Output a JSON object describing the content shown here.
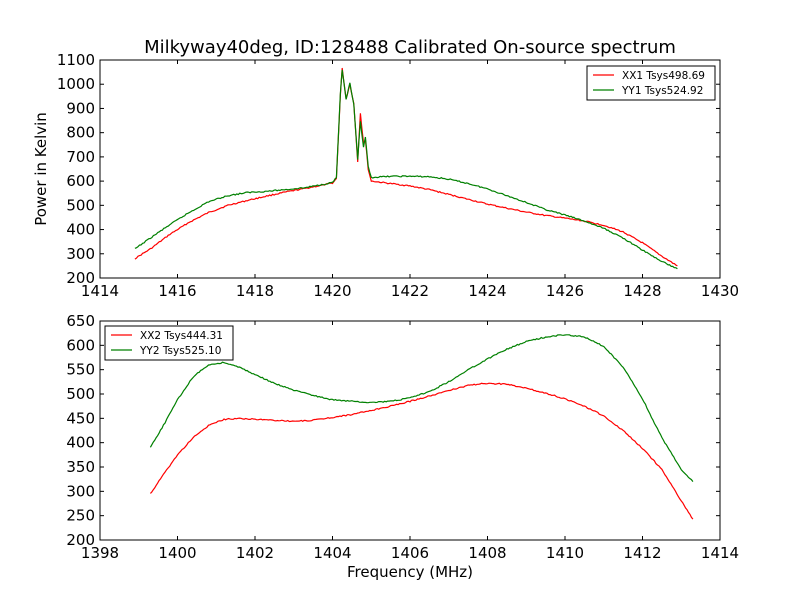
{
  "figure": {
    "title": "Milkyway40deg, ID:128488 Calibrated On-source spectrum",
    "xlabel": "Frequency (MHz)"
  },
  "chart_data": [
    {
      "type": "line",
      "ylabel": "Power in Kelvin",
      "xlabel": "",
      "xlim": [
        1414,
        1430
      ],
      "ylim": [
        200,
        1100
      ],
      "x_ticks": [
        "1414",
        "1416",
        "1418",
        "1420",
        "1422",
        "1424",
        "1426",
        "1428",
        "1430"
      ],
      "y_ticks": [
        "200",
        "300",
        "400",
        "500",
        "600",
        "700",
        "800",
        "900",
        "1000",
        "1100"
      ],
      "x_tick_values": [
        1414,
        1416,
        1418,
        1420,
        1422,
        1424,
        1426,
        1428,
        1430
      ],
      "y_tick_values": [
        200,
        300,
        400,
        500,
        600,
        700,
        800,
        900,
        1000,
        1100
      ],
      "legend": "top-right",
      "grid": false,
      "series": [
        {
          "name": "XX1 Tsys498.69",
          "color": "#ff0000",
          "points": [
            [
              1414.9,
              280
            ],
            [
              1415.3,
              320
            ],
            [
              1415.8,
              380
            ],
            [
              1416.3,
              430
            ],
            [
              1416.8,
              470
            ],
            [
              1417.3,
              500
            ],
            [
              1417.8,
              520
            ],
            [
              1418.3,
              538
            ],
            [
              1418.8,
              555
            ],
            [
              1419.3,
              570
            ],
            [
              1419.8,
              585
            ],
            [
              1420.0,
              592
            ],
            [
              1420.1,
              610
            ],
            [
              1420.2,
              950
            ],
            [
              1420.25,
              1065
            ],
            [
              1420.35,
              940
            ],
            [
              1420.45,
              1000
            ],
            [
              1420.55,
              920
            ],
            [
              1420.65,
              680
            ],
            [
              1420.72,
              880
            ],
            [
              1420.8,
              760
            ],
            [
              1420.85,
              770
            ],
            [
              1420.92,
              650
            ],
            [
              1421.0,
              600
            ],
            [
              1421.5,
              590
            ],
            [
              1422.0,
              580
            ],
            [
              1422.5,
              565
            ],
            [
              1423.0,
              545
            ],
            [
              1423.5,
              525
            ],
            [
              1424.0,
              505
            ],
            [
              1424.5,
              488
            ],
            [
              1425.0,
              472
            ],
            [
              1425.5,
              458
            ],
            [
              1426.0,
              447
            ],
            [
              1426.5,
              435
            ],
            [
              1427.0,
              418
            ],
            [
              1427.5,
              390
            ],
            [
              1428.0,
              345
            ],
            [
              1428.5,
              290
            ],
            [
              1428.9,
              250
            ]
          ]
        },
        {
          "name": "YY1 Tsys524.92",
          "color": "#008000",
          "points": [
            [
              1414.9,
              320
            ],
            [
              1415.3,
              365
            ],
            [
              1415.8,
              420
            ],
            [
              1416.3,
              470
            ],
            [
              1416.8,
              515
            ],
            [
              1417.3,
              540
            ],
            [
              1417.8,
              553
            ],
            [
              1418.3,
              558
            ],
            [
              1418.8,
              565
            ],
            [
              1419.3,
              573
            ],
            [
              1419.8,
              588
            ],
            [
              1420.0,
              595
            ],
            [
              1420.1,
              615
            ],
            [
              1420.2,
              955
            ],
            [
              1420.25,
              1060
            ],
            [
              1420.35,
              935
            ],
            [
              1420.45,
              1005
            ],
            [
              1420.55,
              915
            ],
            [
              1420.65,
              690
            ],
            [
              1420.72,
              845
            ],
            [
              1420.8,
              740
            ],
            [
              1420.85,
              780
            ],
            [
              1420.92,
              660
            ],
            [
              1421.0,
              615
            ],
            [
              1421.5,
              620
            ],
            [
              1422.0,
              620
            ],
            [
              1422.5,
              618
            ],
            [
              1423.0,
              608
            ],
            [
              1423.5,
              590
            ],
            [
              1424.0,
              568
            ],
            [
              1424.5,
              540
            ],
            [
              1425.0,
              512
            ],
            [
              1425.5,
              483
            ],
            [
              1426.0,
              460
            ],
            [
              1426.5,
              435
            ],
            [
              1427.0,
              405
            ],
            [
              1427.5,
              365
            ],
            [
              1428.0,
              315
            ],
            [
              1428.5,
              268
            ],
            [
              1428.9,
              238
            ]
          ]
        }
      ]
    },
    {
      "type": "line",
      "title": "",
      "xlabel": "Frequency (MHz)",
      "ylabel": "",
      "xlim": [
        1398,
        1414
      ],
      "ylim": [
        200,
        650
      ],
      "x_ticks": [
        "1398",
        "1400",
        "1402",
        "1404",
        "1406",
        "1408",
        "1410",
        "1412",
        "1414"
      ],
      "y_ticks": [
        "200",
        "250",
        "300",
        "350",
        "400",
        "450",
        "500",
        "550",
        "600",
        "650"
      ],
      "x_tick_values": [
        1398,
        1400,
        1402,
        1404,
        1406,
        1408,
        1410,
        1412,
        1414
      ],
      "y_tick_values": [
        200,
        250,
        300,
        350,
        400,
        450,
        500,
        550,
        600,
        650
      ],
      "legend": "top-left",
      "grid": false,
      "series": [
        {
          "name": "XX2 Tsys444.31",
          "color": "#ff0000",
          "points": [
            [
              1399.3,
              295
            ],
            [
              1399.6,
              330
            ],
            [
              1400.0,
              375
            ],
            [
              1400.4,
              410
            ],
            [
              1400.8,
              435
            ],
            [
              1401.2,
              448
            ],
            [
              1401.6,
              450
            ],
            [
              1402.0,
              448
            ],
            [
              1402.5,
              446
            ],
            [
              1403.0,
              444
            ],
            [
              1403.5,
              446
            ],
            [
              1404.0,
              452
            ],
            [
              1404.5,
              458
            ],
            [
              1405.0,
              466
            ],
            [
              1405.5,
              475
            ],
            [
              1406.0,
              485
            ],
            [
              1406.5,
              496
            ],
            [
              1407.0,
              507
            ],
            [
              1407.5,
              518
            ],
            [
              1408.0,
              522
            ],
            [
              1408.5,
              520
            ],
            [
              1409.0,
              512
            ],
            [
              1409.5,
              502
            ],
            [
              1410.0,
              490
            ],
            [
              1410.5,
              475
            ],
            [
              1411.0,
              455
            ],
            [
              1411.5,
              425
            ],
            [
              1412.0,
              388
            ],
            [
              1412.5,
              345
            ],
            [
              1413.0,
              280
            ],
            [
              1413.3,
              243
            ]
          ]
        },
        {
          "name": "YY2 Tsys525.10",
          "color": "#008000",
          "points": [
            [
              1399.3,
              390
            ],
            [
              1399.6,
              430
            ],
            [
              1400.0,
              488
            ],
            [
              1400.4,
              535
            ],
            [
              1400.8,
              560
            ],
            [
              1401.2,
              565
            ],
            [
              1401.6,
              555
            ],
            [
              1402.0,
              540
            ],
            [
              1402.5,
              522
            ],
            [
              1403.0,
              508
            ],
            [
              1403.5,
              497
            ],
            [
              1404.0,
              488
            ],
            [
              1404.5,
              485
            ],
            [
              1405.0,
              483
            ],
            [
              1405.5,
              485
            ],
            [
              1406.0,
              492
            ],
            [
              1406.5,
              505
            ],
            [
              1407.0,
              525
            ],
            [
              1407.5,
              550
            ],
            [
              1408.0,
              572
            ],
            [
              1408.5,
              592
            ],
            [
              1409.0,
              608
            ],
            [
              1409.5,
              617
            ],
            [
              1410.0,
              622
            ],
            [
              1410.5,
              617
            ],
            [
              1411.0,
              598
            ],
            [
              1411.5,
              555
            ],
            [
              1412.0,
              490
            ],
            [
              1412.5,
              410
            ],
            [
              1413.0,
              345
            ],
            [
              1413.3,
              320
            ]
          ]
        }
      ]
    }
  ]
}
